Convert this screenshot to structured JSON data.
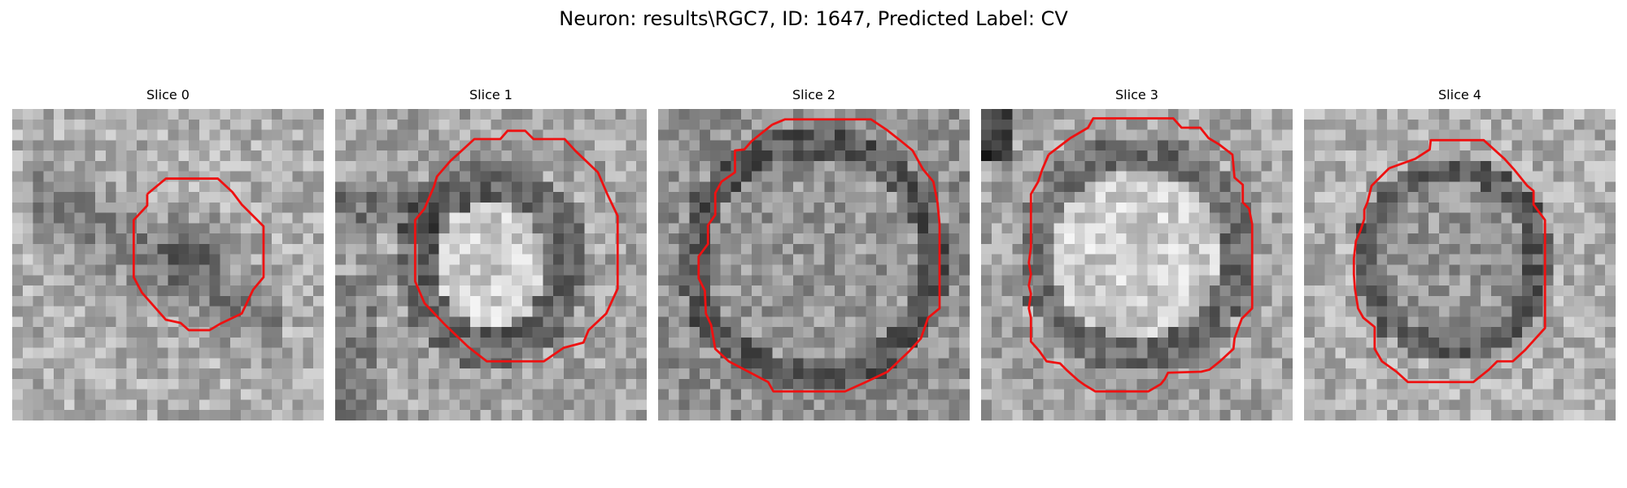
{
  "figure": {
    "title": "Neuron: results\\RGC7, ID: 1647, Predicted Label: CV"
  },
  "slices": [
    {
      "title": "Slice 0",
      "contour_color": "#ee1111"
    },
    {
      "title": "Slice 1",
      "contour_color": "#ee1111"
    },
    {
      "title": "Slice 2",
      "contour_color": "#ee1111"
    },
    {
      "title": "Slice 3",
      "contour_color": "#ee1111"
    },
    {
      "title": "Slice 4",
      "contour_color": "#ee1111"
    }
  ]
}
